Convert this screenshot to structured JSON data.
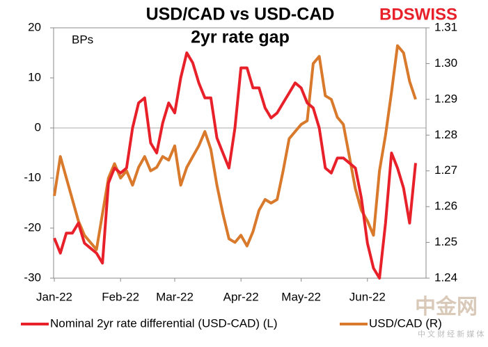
{
  "chart_data": {
    "type": "line",
    "title": "USD/CAD vs USD-CAD",
    "subtitle": "2yr rate gap",
    "annotation": "BPs",
    "logo": "BDSWISS",
    "watermark": "中金网",
    "watermark_sub": "中 文 财 经 新 媒 体",
    "categories": [
      "Jan-22",
      null,
      null,
      null,
      null,
      null,
      null,
      null,
      null,
      null,
      null,
      "Feb-22",
      null,
      null,
      null,
      null,
      null,
      null,
      null,
      null,
      "Mar-22",
      null,
      null,
      null,
      null,
      null,
      null,
      null,
      null,
      null,
      null,
      "Apr-22",
      null,
      null,
      null,
      null,
      null,
      null,
      null,
      null,
      null,
      "May-22",
      null,
      null,
      null,
      null,
      null,
      null,
      null,
      null,
      null,
      null,
      "Jun-22",
      null,
      null,
      null,
      null,
      null,
      null,
      null,
      null
    ],
    "ylim": [
      -30,
      20
    ],
    "yticks": [
      -30,
      -20,
      -10,
      0,
      10,
      20
    ],
    "y2lim": [
      1.24,
      1.31
    ],
    "y2ticks": [
      1.24,
      1.25,
      1.26,
      1.27,
      1.28,
      1.29,
      {
        "value": 1.3,
        "label": "1.30"
      },
      1.31
    ],
    "zero_line": true,
    "series": [
      {
        "name": "Nominal 2yr rate differential (USD-CAD) (L)",
        "color": "#e8202a",
        "values": [
          -22,
          -25,
          -21,
          -21,
          -19,
          -23,
          -24,
          -25,
          -27,
          -11,
          -8,
          -9,
          -8,
          0,
          5,
          6,
          -3,
          -5,
          1,
          5,
          3,
          10,
          15,
          13,
          9,
          6,
          6,
          -2,
          -5,
          -8,
          0,
          12,
          12,
          8,
          8,
          4,
          2,
          3,
          5,
          7,
          9,
          8,
          5,
          4,
          0,
          -8,
          -9,
          -6,
          -6,
          -7,
          -8,
          -14,
          -23,
          -28,
          -30,
          -19,
          -5,
          -8,
          -12,
          -19,
          -7
        ]
      },
      {
        "name": "USD/CAD (R)",
        "color": "#d9792b",
        "axis": "y2",
        "values": [
          1.263,
          1.274,
          1.268,
          1.262,
          1.256,
          1.252,
          1.25,
          1.248,
          1.258,
          1.268,
          1.272,
          1.268,
          1.27,
          1.266,
          1.271,
          1.274,
          1.27,
          1.271,
          1.274,
          1.273,
          1.277,
          1.266,
          1.271,
          1.274,
          1.277,
          1.281,
          1.276,
          1.266,
          1.258,
          1.251,
          1.25,
          1.252,
          1.249,
          1.253,
          1.259,
          1.262,
          1.261,
          1.262,
          1.27,
          1.279,
          1.281,
          1.283,
          1.284,
          1.3,
          1.302,
          1.291,
          1.29,
          1.285,
          1.283,
          1.274,
          1.265,
          1.259,
          1.256,
          1.252,
          1.27,
          1.28,
          1.292,
          1.305,
          1.303,
          1.295,
          1.29
        ]
      }
    ]
  }
}
